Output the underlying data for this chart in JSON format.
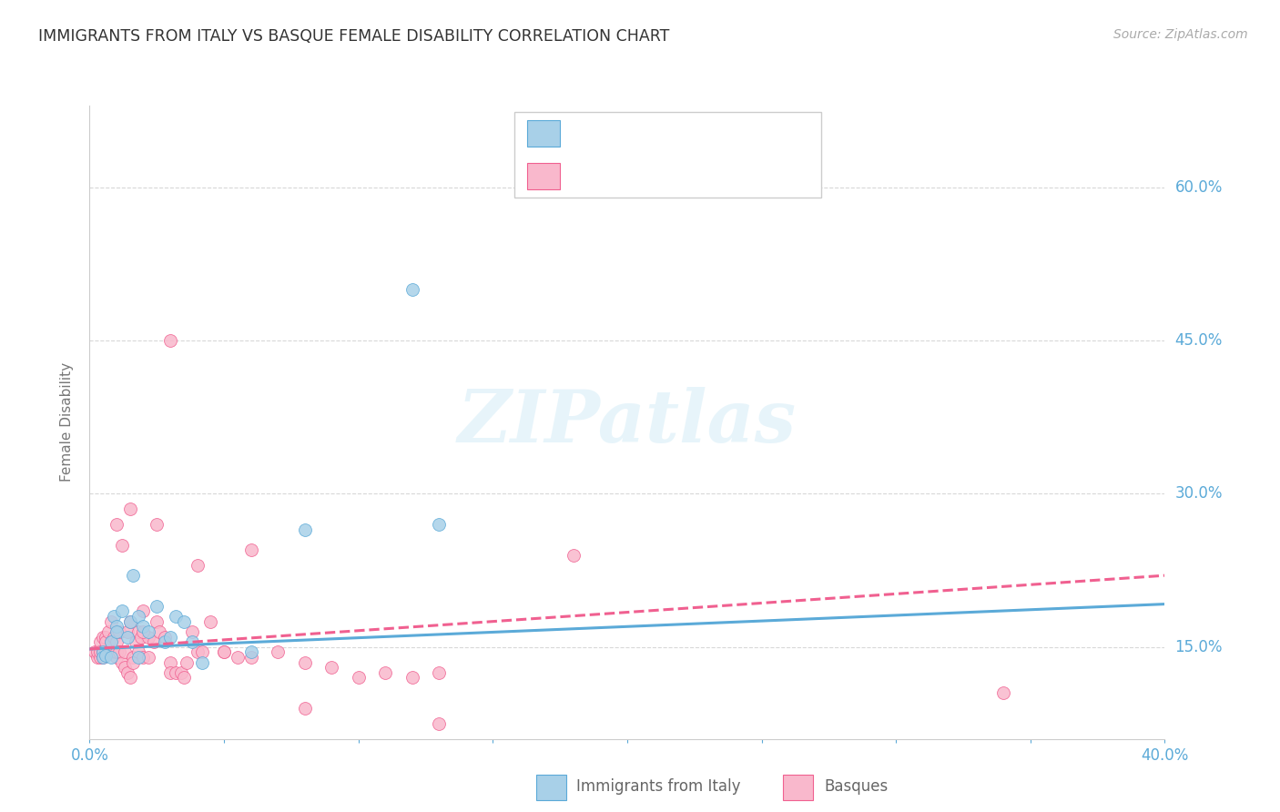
{
  "title": "IMMIGRANTS FROM ITALY VS BASQUE FEMALE DISABILITY CORRELATION CHART",
  "source": "Source: ZipAtlas.com",
  "ylabel": "Female Disability",
  "ytick_vals": [
    0.15,
    0.3,
    0.45,
    0.6
  ],
  "ytick_labels": [
    "15.0%",
    "30.0%",
    "45.0%",
    "60.0%"
  ],
  "xlim": [
    0.0,
    0.4
  ],
  "ylim": [
    0.06,
    0.68
  ],
  "color_blue_fill": "#a8d0e8",
  "color_pink_fill": "#f9b8cc",
  "color_blue_edge": "#5baad8",
  "color_pink_edge": "#f06090",
  "color_blue_text": "#5baad8",
  "color_pink_text": "#f06090",
  "watermark": "ZIPatlas",
  "blue_trend_x": [
    0.0,
    0.4
  ],
  "blue_trend_y": [
    0.148,
    0.192
  ],
  "pink_trend_x": [
    0.0,
    0.4
  ],
  "pink_trend_y": [
    0.148,
    0.22
  ],
  "blue_x": [
    0.005,
    0.005,
    0.006,
    0.008,
    0.008,
    0.009,
    0.01,
    0.01,
    0.012,
    0.014,
    0.015,
    0.016,
    0.018,
    0.018,
    0.02,
    0.022,
    0.025,
    0.028,
    0.03,
    0.032,
    0.035,
    0.038,
    0.042,
    0.06,
    0.08,
    0.12,
    0.13
  ],
  "blue_y": [
    0.145,
    0.14,
    0.142,
    0.155,
    0.14,
    0.18,
    0.17,
    0.165,
    0.185,
    0.16,
    0.175,
    0.22,
    0.18,
    0.14,
    0.17,
    0.165,
    0.19,
    0.155,
    0.16,
    0.18,
    0.175,
    0.155,
    0.135,
    0.145,
    0.265,
    0.5,
    0.27
  ],
  "pink_x": [
    0.002,
    0.003,
    0.003,
    0.004,
    0.004,
    0.004,
    0.005,
    0.005,
    0.005,
    0.006,
    0.006,
    0.006,
    0.007,
    0.007,
    0.008,
    0.008,
    0.008,
    0.009,
    0.009,
    0.01,
    0.01,
    0.01,
    0.011,
    0.011,
    0.012,
    0.012,
    0.013,
    0.013,
    0.014,
    0.014,
    0.015,
    0.015,
    0.016,
    0.016,
    0.017,
    0.018,
    0.018,
    0.019,
    0.02,
    0.02,
    0.022,
    0.022,
    0.024,
    0.025,
    0.026,
    0.028,
    0.03,
    0.03,
    0.032,
    0.034,
    0.035,
    0.036,
    0.038,
    0.04,
    0.042,
    0.045,
    0.05,
    0.055,
    0.06,
    0.07,
    0.08,
    0.09,
    0.1,
    0.11,
    0.12,
    0.13,
    0.01,
    0.015,
    0.02,
    0.025,
    0.03,
    0.04,
    0.05,
    0.06,
    0.34,
    0.18,
    0.13,
    0.08
  ],
  "pink_y": [
    0.145,
    0.14,
    0.145,
    0.155,
    0.14,
    0.145,
    0.14,
    0.145,
    0.16,
    0.145,
    0.16,
    0.155,
    0.145,
    0.165,
    0.145,
    0.175,
    0.155,
    0.16,
    0.145,
    0.14,
    0.155,
    0.145,
    0.145,
    0.165,
    0.25,
    0.135,
    0.13,
    0.145,
    0.165,
    0.125,
    0.175,
    0.12,
    0.14,
    0.135,
    0.155,
    0.145,
    0.165,
    0.16,
    0.185,
    0.14,
    0.14,
    0.16,
    0.155,
    0.175,
    0.165,
    0.16,
    0.135,
    0.125,
    0.125,
    0.125,
    0.12,
    0.135,
    0.165,
    0.145,
    0.145,
    0.175,
    0.145,
    0.14,
    0.14,
    0.145,
    0.135,
    0.13,
    0.12,
    0.125,
    0.12,
    0.125,
    0.27,
    0.285,
    0.165,
    0.27,
    0.45,
    0.23,
    0.145,
    0.245,
    0.105,
    0.24,
    0.075,
    0.09
  ],
  "marker_size": 100,
  "grid_color": "#d8d8d8",
  "spine_color": "#cccccc"
}
